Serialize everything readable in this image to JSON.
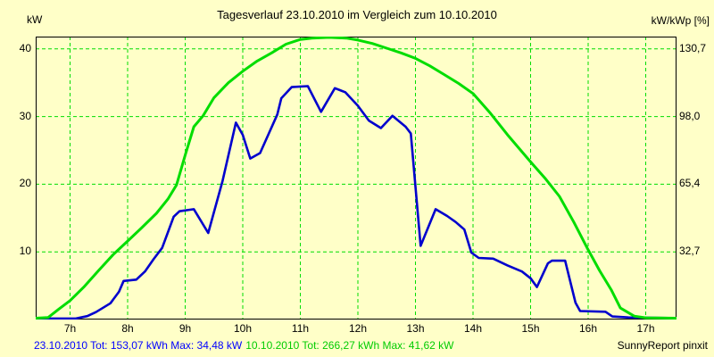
{
  "title": "Tagesverlauf 23.10.2010 im Vergleich zum 10.10.2010",
  "footer": {
    "series1_summary": "23.10.2010 Tot: 153,07 kWh Max: 34,48 kW",
    "series2_summary": "10.10.2010 Tot: 266,27 kWh Max: 41,62 kW",
    "credit": "SunnyReport pinxit"
  },
  "colors": {
    "background": "#ffffc8",
    "grid": "#00dd00",
    "frame": "#000000",
    "series_23_10_2010": "#0000cd",
    "series_10_10_2010": "#00dd00",
    "footer_series1_text": "#0000ff",
    "footer_series2_text": "#00cc00"
  },
  "chart_data": {
    "type": "line",
    "title": "Tagesverlauf 23.10.2010 im Vergleich zum 10.10.2010",
    "grid": "dashed green, horizontal and vertical",
    "legend_position": "none (summaries in footer)",
    "left_axis": {
      "label": "kW",
      "ticks": [
        10,
        20,
        30,
        40
      ],
      "range": [
        0,
        41.8
      ]
    },
    "right_axis": {
      "label": "kW/kWp [%]",
      "tick_labels": [
        "32,7",
        "65,4",
        "98,0",
        "130,7"
      ]
    },
    "x_axis": {
      "tick_labels": [
        "7h",
        "8h",
        "9h",
        "10h",
        "11h",
        "12h",
        "13h",
        "14h",
        "15h",
        "16h",
        "17h"
      ],
      "tick_hours": [
        7,
        8,
        9,
        10,
        11,
        12,
        13,
        14,
        15,
        16,
        17
      ],
      "range_hours": [
        6.4,
        17.57
      ]
    },
    "series": [
      {
        "name": "23.10.2010",
        "color": "#0000cd",
        "total_kwh": "153,07",
        "max_kw": "34,48",
        "points": [
          [
            6.4,
            0.15
          ],
          [
            7.1,
            0.15
          ],
          [
            7.3,
            0.5
          ],
          [
            7.45,
            1.1
          ],
          [
            7.7,
            2.4
          ],
          [
            7.85,
            4.1
          ],
          [
            7.93,
            5.7
          ],
          [
            8.15,
            5.9
          ],
          [
            8.3,
            7.1
          ],
          [
            8.45,
            8.9
          ],
          [
            8.6,
            10.6
          ],
          [
            8.8,
            15.2
          ],
          [
            8.9,
            16.0
          ],
          [
            9.15,
            16.3
          ],
          [
            9.4,
            12.8
          ],
          [
            9.65,
            20.5
          ],
          [
            9.88,
            29.1
          ],
          [
            10.0,
            27.3
          ],
          [
            10.13,
            23.8
          ],
          [
            10.3,
            24.6
          ],
          [
            10.6,
            30.3
          ],
          [
            10.67,
            32.7
          ],
          [
            10.85,
            34.35
          ],
          [
            11.13,
            34.5
          ],
          [
            11.36,
            30.7
          ],
          [
            11.6,
            34.2
          ],
          [
            11.78,
            33.6
          ],
          [
            12.0,
            31.6
          ],
          [
            12.19,
            29.4
          ],
          [
            12.4,
            28.3
          ],
          [
            12.6,
            30.1
          ],
          [
            12.83,
            28.5
          ],
          [
            12.92,
            27.5
          ],
          [
            13.09,
            10.9
          ],
          [
            13.35,
            16.3
          ],
          [
            13.55,
            15.3
          ],
          [
            13.7,
            14.4
          ],
          [
            13.85,
            13.3
          ],
          [
            13.97,
            9.9
          ],
          [
            14.1,
            9.1
          ],
          [
            14.35,
            9.0
          ],
          [
            14.6,
            8.0
          ],
          [
            14.85,
            7.1
          ],
          [
            15.0,
            6.1
          ],
          [
            15.11,
            4.8
          ],
          [
            15.3,
            8.3
          ],
          [
            15.37,
            8.7
          ],
          [
            15.6,
            8.7
          ],
          [
            15.78,
            2.5
          ],
          [
            15.86,
            1.25
          ],
          [
            16.3,
            1.15
          ],
          [
            16.42,
            0.45
          ],
          [
            16.7,
            0.3
          ],
          [
            17.56,
            0.2
          ]
        ]
      },
      {
        "name": "10.10.2010",
        "color": "#00dd00",
        "total_kwh": "266,27",
        "max_kw": "41,62",
        "points": [
          [
            6.4,
            0.2
          ],
          [
            6.62,
            0.3
          ],
          [
            6.8,
            1.5
          ],
          [
            7.0,
            2.8
          ],
          [
            7.25,
            4.9
          ],
          [
            7.5,
            7.3
          ],
          [
            7.75,
            9.6
          ],
          [
            8.0,
            11.6
          ],
          [
            8.25,
            13.6
          ],
          [
            8.5,
            15.7
          ],
          [
            8.7,
            17.8
          ],
          [
            8.85,
            19.9
          ],
          [
            9.0,
            24.3
          ],
          [
            9.15,
            28.5
          ],
          [
            9.31,
            30.1
          ],
          [
            9.5,
            32.8
          ],
          [
            9.75,
            35.0
          ],
          [
            10.0,
            36.7
          ],
          [
            10.25,
            38.2
          ],
          [
            10.5,
            39.4
          ],
          [
            10.75,
            40.7
          ],
          [
            11.0,
            41.4
          ],
          [
            11.2,
            41.6
          ],
          [
            11.5,
            41.7
          ],
          [
            11.8,
            41.6
          ],
          [
            12.0,
            41.3
          ],
          [
            12.25,
            40.8
          ],
          [
            12.5,
            40.1
          ],
          [
            12.75,
            39.4
          ],
          [
            13.0,
            38.6
          ],
          [
            13.25,
            37.5
          ],
          [
            13.5,
            36.2
          ],
          [
            13.75,
            34.9
          ],
          [
            14.0,
            33.4
          ],
          [
            14.3,
            30.5
          ],
          [
            14.6,
            27.3
          ],
          [
            15.0,
            23.3
          ],
          [
            15.25,
            20.9
          ],
          [
            15.5,
            18.2
          ],
          [
            15.75,
            14.4
          ],
          [
            16.0,
            10.3
          ],
          [
            16.2,
            7.2
          ],
          [
            16.4,
            4.4
          ],
          [
            16.56,
            1.7
          ],
          [
            16.8,
            0.5
          ],
          [
            17.0,
            0.25
          ],
          [
            17.56,
            0.2
          ]
        ]
      }
    ]
  }
}
